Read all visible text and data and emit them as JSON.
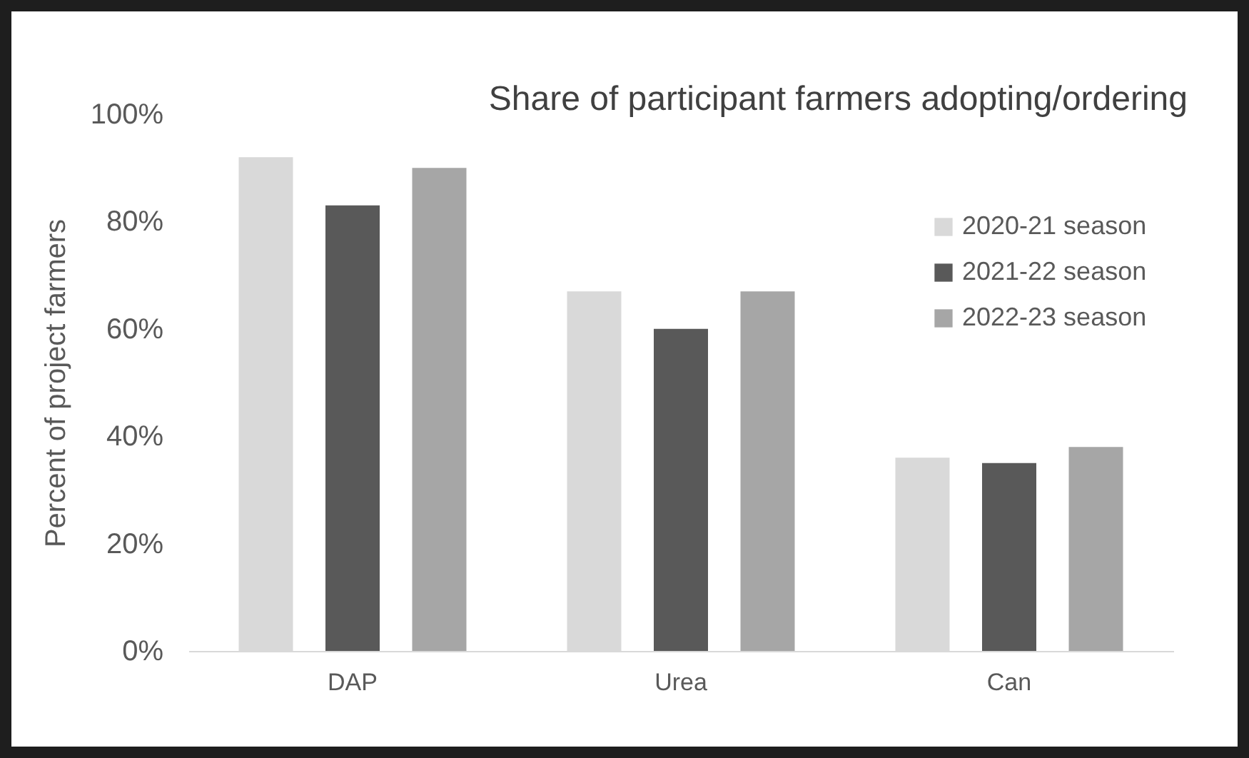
{
  "chart_data": {
    "type": "bar",
    "title": "Share of participant farmers adopting/ordering",
    "ylabel": "Percent of project farmers",
    "categories": [
      "DAP",
      "Urea",
      "Can"
    ],
    "series": [
      {
        "name": "2020-21 season",
        "color": "#d9d9d9",
        "values": [
          92,
          67,
          36
        ]
      },
      {
        "name": "2021-22 season",
        "color": "#595959",
        "values": [
          83,
          60,
          35
        ]
      },
      {
        "name": "2022-23 season",
        "color": "#a6a6a6",
        "values": [
          90,
          67,
          38
        ]
      }
    ],
    "ylim": [
      0,
      100
    ],
    "yticks": [
      {
        "value": 0,
        "label": "0%"
      },
      {
        "value": 20,
        "label": "20%"
      },
      {
        "value": 40,
        "label": "40%"
      },
      {
        "value": 60,
        "label": "60%"
      },
      {
        "value": 80,
        "label": "80%"
      },
      {
        "value": 100,
        "label": "100%"
      }
    ],
    "legend": "top right",
    "grid": false
  }
}
